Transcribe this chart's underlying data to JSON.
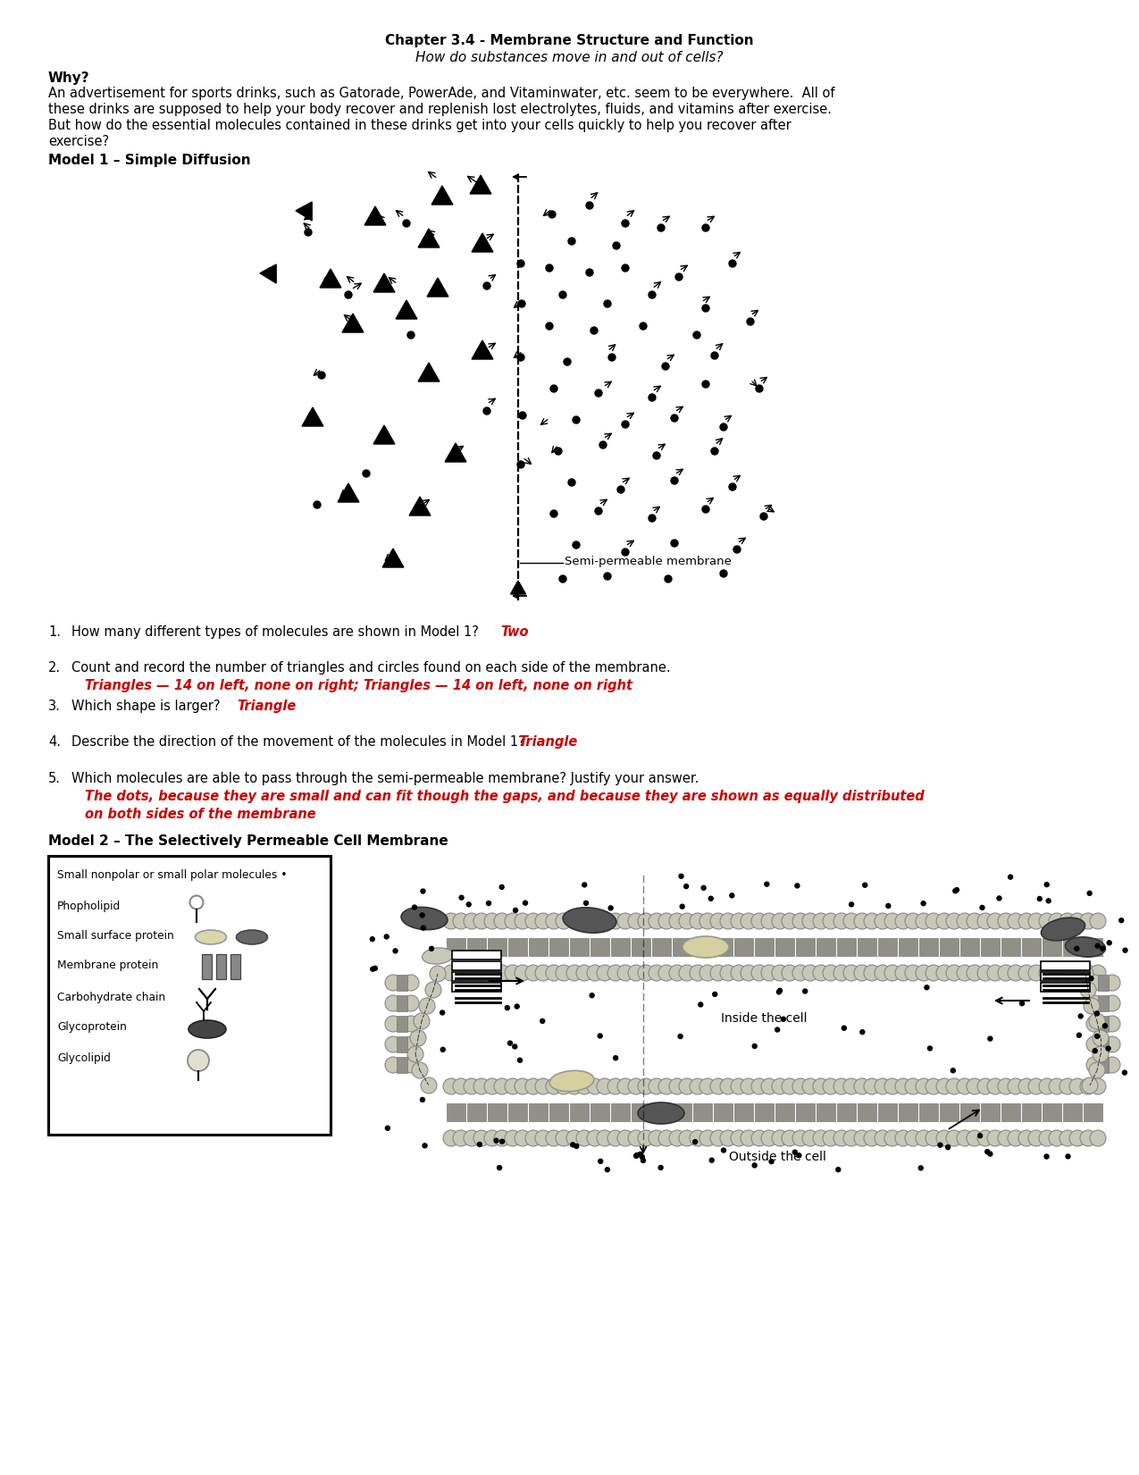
{
  "title": "Chapter 3.4 - Membrane Structure and Function",
  "subtitle": "How do substances move in and out of cells?",
  "why_label": "Why?",
  "body_line1": "An advertisement for sports drinks, such as Gatorade, PowerAde, and Vitaminwater, etc. seem to be everywhere.  All of",
  "body_line2": "these drinks are supposed to help your body recover and replenish lost electrolytes, fluids, and vitamins after exercise.",
  "body_line3": "But how do the essential molecules contained in these drinks get into your cells quickly to help you recover after",
  "body_line4": "exercise?",
  "model1_label": "Model 1 – Simple Diffusion",
  "membrane_label": "Semi-permeable membrane",
  "q1_text": "1.   How many different types of molecules are shown in Model 1?",
  "q1_ans": "Two",
  "q2_text": "2.   Count and record the number of triangles and circles found on each side of the membrane.",
  "q2_ans": "Triangles — 14 on left, none on right; Triangles — 14 on left, none on right",
  "q3_text": "3.   Which shape is larger?",
  "q3_ans": "Triangle",
  "q4_text": "4.   Describe the direction of the movement of the molecules in Model 1?",
  "q4_ans": "Triangle",
  "q5_text": "5.   Which molecules are able to pass through the semi-permeable membrane? Justify your answer.",
  "q5_ans1": "The dots, because they are small and can fit though the gaps, and because they are shown as equally distributed",
  "q5_ans2": "on both sides of the membrane",
  "model2_label": "Model 2 – The Selectively Permeable Cell Membrane",
  "inside_label": "Inside the cell",
  "outside_label": "Outside the cell",
  "legend_title": "Small nonpolar or small polar molecules •",
  "legend_items": [
    "Phopholipid",
    "Small surface protein",
    "Membrane protein",
    "Carbohydrate chain",
    "Glycoprotein",
    "Glycolipid"
  ],
  "bg": "#ffffff",
  "black": "#000000",
  "red": "#cc0000",
  "gray_dark": "#555555",
  "gray_mid": "#888888",
  "gray_light": "#ccccbb",
  "cream": "#d4d0a0"
}
